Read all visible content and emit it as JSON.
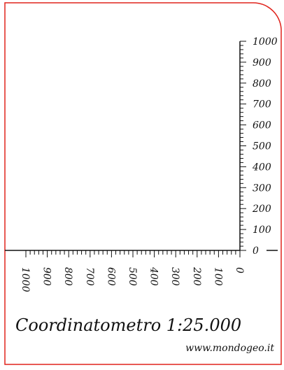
{
  "title": "Coordinatometro 1:25.000",
  "website": "www.mondogeo.it",
  "colors": {
    "border": "#e0231c",
    "ink": "#111111",
    "background": "#ffffff"
  },
  "vertical_scale": {
    "min": 0,
    "max": 1000,
    "major_step": 100,
    "minor_step": 20,
    "labels": [
      "0",
      "100",
      "200",
      "300",
      "400",
      "500",
      "600",
      "700",
      "800",
      "900",
      "1000"
    ]
  },
  "horizontal_scale": {
    "min": 0,
    "max": 1000,
    "major_step": 100,
    "minor_step": 20,
    "direction": "right-to-left",
    "labels": [
      "0",
      "100",
      "200",
      "300",
      "400",
      "500",
      "600",
      "700",
      "800",
      "900",
      "1000"
    ]
  }
}
